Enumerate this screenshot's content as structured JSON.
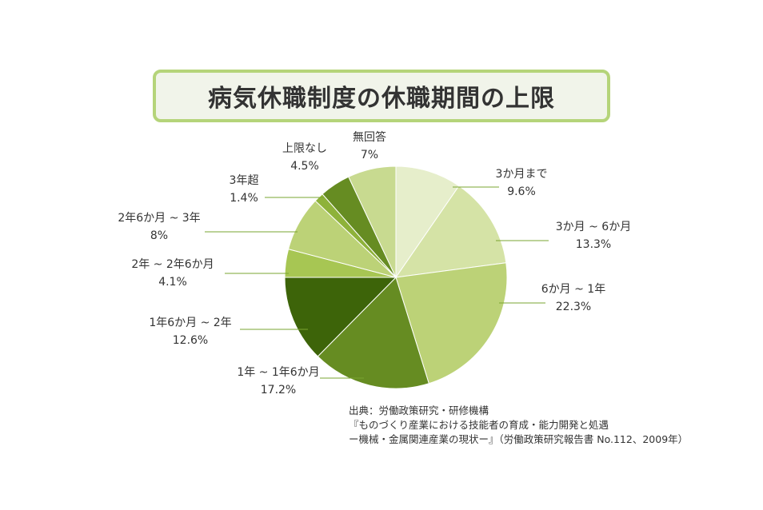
{
  "title": "病気休職制度の休職期間の上限",
  "source_lines": [
    "出典：労働政策研究・研修機構",
    "『ものづくり産業における技能者の育成・能力開発と処遇",
    "ー機械・金属関連産業の現状ー』（労働政策研究報告書 No.112、2009年）"
  ],
  "chart_data": {
    "type": "pie",
    "title": "病気休職制度の休職期間の上限",
    "start": "12 o'clock",
    "direction": "clockwise",
    "slices": [
      {
        "label": "3か月まで",
        "value_label": "9.6%",
        "value": 9.6,
        "color": "#e6eecb"
      },
      {
        "label": "3か月 ~ 6か月",
        "value_label": "13.3%",
        "value": 13.3,
        "color": "#d5e3a6"
      },
      {
        "label": "6か月 ~ 1年",
        "value_label": "22.3%",
        "value": 22.3,
        "color": "#bcd277"
      },
      {
        "label": "1年 ~ 1年6か月",
        "value_label": "17.2%",
        "value": 17.2,
        "color": "#668c22"
      },
      {
        "label": "1年6か月 ~ 2年",
        "value_label": "12.6%",
        "value": 12.6,
        "color": "#3d6409"
      },
      {
        "label": "2年 ~ 2年6か月",
        "value_label": "4.1%",
        "value": 4.1,
        "color": "#a7c653"
      },
      {
        "label": "2年6か月 ~ 3年",
        "value_label": "8%",
        "value": 8,
        "color": "#bcd277"
      },
      {
        "label": "3年超",
        "value_label": "1.4%",
        "value": 1.4,
        "color": "#8eb23a"
      },
      {
        "label": "上限なし",
        "value_label": "4.5%",
        "value": 4.5,
        "color": "#668c22"
      },
      {
        "label": "無回答",
        "value_label": "7%",
        "value": 7,
        "color": "#c8da90"
      }
    ]
  }
}
